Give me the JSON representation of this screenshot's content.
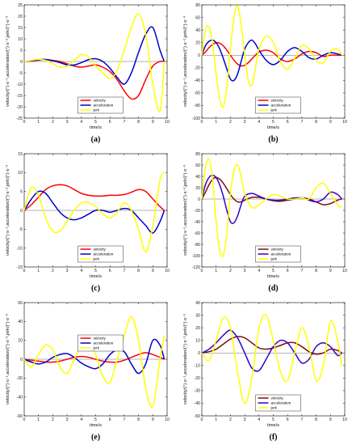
{
  "chart_data": [
    {
      "type": "line",
      "panel_label": "(a)",
      "xlabel": "time/s",
      "ylabel": "velocity/(°)·s⁻¹,acceleration/(°)·s⁻²,jerk/(°)·s⁻³",
      "xlim": [
        0,
        10
      ],
      "ylim": [
        -25,
        25
      ],
      "xticks": [
        0,
        1,
        2,
        3,
        4,
        5,
        6,
        7,
        8,
        9,
        10
      ],
      "yticks": [
        -25,
        -20,
        -15,
        -10,
        -5,
        0,
        5,
        10,
        15,
        20,
        25
      ],
      "legend_placement": "lower-center",
      "x": [
        0,
        0.5,
        1,
        1.5,
        2,
        2.5,
        3,
        3.5,
        4,
        4.5,
        5,
        5.5,
        6,
        6.5,
        7,
        7.5,
        8,
        8.5,
        9,
        9.5,
        9.8
      ],
      "series": [
        {
          "name": "velocity",
          "color": "#ff0000",
          "values": [
            0,
            0.2,
            0.6,
            0.8,
            0.5,
            0,
            -1,
            -2,
            -2.5,
            -2,
            -1.5,
            -2.5,
            -4.5,
            -8,
            -13,
            -16.5,
            -15,
            -8,
            -2,
            0,
            0
          ]
        },
        {
          "name": "acceleration",
          "color": "#0000cc",
          "values": [
            0,
            0.3,
            0.8,
            0.9,
            0.3,
            -0.5,
            -1.5,
            -1.5,
            -0.5,
            0.8,
            1.2,
            0,
            -3,
            -7,
            -10,
            -5,
            4,
            12,
            15,
            5,
            0
          ]
        },
        {
          "name": "jerk",
          "color": "#ffff00",
          "values": [
            0,
            0.5,
            1,
            0.5,
            -1,
            -2.5,
            -2,
            0.5,
            3,
            2,
            -2,
            -5,
            -7.5,
            -4,
            5,
            15,
            21,
            12,
            -10,
            -22,
            0
          ]
        }
      ]
    },
    {
      "type": "line",
      "panel_label": "(b)",
      "xlabel": "time/s",
      "ylabel": "velocity/(°)·s⁻¹,acceleration/(°)·s⁻²,jerk/(°)·s⁻³",
      "xlim": [
        0,
        10
      ],
      "ylim": [
        -100,
        80
      ],
      "xticks": [
        0,
        1,
        2,
        3,
        4,
        5,
        6,
        7,
        8,
        9,
        10
      ],
      "yticks": [
        -100,
        -80,
        -60,
        -40,
        -20,
        0,
        20,
        40,
        60,
        80
      ],
      "legend_placement": "lower-center",
      "x": [
        0,
        0.25,
        0.5,
        0.75,
        1,
        1.25,
        1.5,
        1.75,
        2,
        2.25,
        2.5,
        2.75,
        3,
        3.25,
        3.5,
        3.75,
        4,
        4.5,
        5,
        5.5,
        6,
        6.5,
        7,
        7.5,
        8,
        8.5,
        9,
        9.5,
        9.8
      ],
      "series": [
        {
          "name": "velocity",
          "color": "#ff0000",
          "values": [
            0,
            5,
            12,
            17,
            20,
            19,
            15,
            8,
            0,
            -8,
            -14,
            -17,
            -16,
            -12,
            -6,
            0,
            5,
            8,
            4,
            -6,
            -10,
            -6,
            2,
            6,
            4,
            -2,
            0,
            0,
            0
          ]
        },
        {
          "name": "acceleration",
          "color": "#0000cc",
          "values": [
            0,
            15,
            22,
            24,
            20,
            10,
            -5,
            -22,
            -38,
            -40,
            -30,
            -10,
            10,
            20,
            24,
            18,
            8,
            -8,
            -15,
            -8,
            6,
            12,
            6,
            -4,
            -6,
            0,
            4,
            2,
            0
          ]
        },
        {
          "name": "jerk",
          "color": "#ffff00",
          "values": [
            0,
            40,
            45,
            20,
            -30,
            -70,
            -82,
            -50,
            10,
            60,
            78,
            50,
            0,
            -40,
            -48,
            -20,
            10,
            30,
            20,
            -10,
            -22,
            -5,
            15,
            10,
            -8,
            -12,
            6,
            10,
            0
          ]
        }
      ]
    },
    {
      "type": "line",
      "panel_label": "(c)",
      "xlabel": "time/s",
      "ylabel": "velocity/(°)·s⁻¹,acceleration/(°)·s⁻²,jerk/(°)·s⁻³",
      "xlim": [
        0,
        10
      ],
      "ylim": [
        -15,
        15
      ],
      "xticks": [
        0,
        1,
        2,
        3,
        4,
        5,
        6,
        7,
        8,
        9,
        10
      ],
      "yticks": [
        -15,
        -10,
        -5,
        0,
        5,
        10,
        15
      ],
      "legend_placement": "lower-center",
      "x": [
        0,
        0.5,
        1,
        1.5,
        2,
        2.5,
        3,
        3.5,
        4,
        4.5,
        5,
        5.5,
        6,
        6.5,
        7,
        7.5,
        8,
        8.5,
        9,
        9.5,
        9.8
      ],
      "series": [
        {
          "name": "velocity",
          "color": "#ff0000",
          "values": [
            0,
            1.5,
            3.5,
            5.5,
            6.5,
            6.8,
            6.5,
            5.5,
            4.5,
            4,
            3.8,
            3.8,
            4,
            4,
            4.2,
            4.8,
            5.5,
            5,
            3,
            1,
            0
          ]
        },
        {
          "name": "acceleration",
          "color": "#0000cc",
          "values": [
            0,
            3,
            5,
            4.5,
            2,
            -0.5,
            -2,
            -2.5,
            -2,
            -1,
            0,
            0,
            -0.5,
            0,
            0.5,
            0,
            -2,
            -4,
            -6,
            -3,
            0
          ]
        },
        {
          "name": "jerk",
          "color": "#ffff00",
          "values": [
            0,
            6,
            4,
            -2,
            -5.5,
            -5.5,
            -3,
            0,
            2,
            2,
            1,
            -1,
            -2,
            -0.5,
            2,
            0,
            -5,
            -11,
            -4,
            8,
            10
          ]
        }
      ]
    },
    {
      "type": "line",
      "panel_label": "(d)",
      "xlabel": "time/s",
      "ylabel": "velocity/(°)·s⁻¹,acceleration/(°)·s⁻²,jerk/(°)·s⁻³",
      "xlim": [
        0,
        10
      ],
      "ylim": [
        -120,
        80
      ],
      "xticks": [
        0,
        1,
        2,
        3,
        4,
        5,
        6,
        7,
        8,
        9,
        10
      ],
      "yticks": [
        -120,
        -100,
        -80,
        -60,
        -40,
        -20,
        0,
        20,
        40,
        60,
        80
      ],
      "legend_placement": "lower-center",
      "x": [
        0,
        0.25,
        0.5,
        0.75,
        1,
        1.25,
        1.5,
        1.75,
        2,
        2.25,
        2.5,
        2.75,
        3,
        3.5,
        4,
        4.5,
        5,
        5.5,
        6,
        6.5,
        7,
        7.5,
        8,
        8.5,
        9,
        9.5,
        9.8
      ],
      "series": [
        {
          "name": "velocity",
          "color": "#7b1010",
          "values": [
            0,
            12,
            25,
            35,
            38,
            35,
            28,
            18,
            8,
            0,
            -5,
            -5,
            -2,
            3,
            3,
            0,
            -3,
            -4,
            -2,
            0,
            2,
            0,
            -5,
            -10,
            -8,
            -2,
            0
          ]
        },
        {
          "name": "acceleration",
          "color": "#3300cc",
          "values": [
            0,
            25,
            38,
            42,
            38,
            25,
            5,
            -20,
            -40,
            -42,
            -30,
            -10,
            5,
            10,
            5,
            0,
            -2,
            -2,
            0,
            2,
            2,
            -2,
            -5,
            0,
            12,
            8,
            0
          ]
        },
        {
          "name": "jerk",
          "color": "#ffff00",
          "values": [
            0,
            55,
            70,
            35,
            -40,
            -90,
            -100,
            -60,
            10,
            50,
            60,
            40,
            10,
            -15,
            -10,
            0,
            8,
            5,
            0,
            0,
            2,
            0,
            20,
            28,
            10,
            -10,
            -15
          ]
        }
      ]
    },
    {
      "type": "line",
      "panel_label": "(e)",
      "xlabel": "time/s",
      "ylabel": "velocity/(°)·s⁻¹,acceleration/(°)·s⁻²,jerk/(°)·s⁻³",
      "xlim": [
        0,
        10
      ],
      "ylim": [
        -60,
        60
      ],
      "xticks": [
        0,
        1,
        2,
        3,
        4,
        5,
        6,
        7,
        8,
        9,
        10
      ],
      "yticks": [
        -60,
        -40,
        -20,
        0,
        20,
        40,
        60
      ],
      "legend_placement": "upper-center",
      "x": [
        0,
        0.5,
        1,
        1.5,
        2,
        2.5,
        3,
        3.5,
        4,
        4.5,
        5,
        5.5,
        6,
        6.5,
        7,
        7.5,
        8,
        8.5,
        9,
        9.5,
        9.8
      ],
      "series": [
        {
          "name": "velocity",
          "color": "#ff0000",
          "values": [
            0,
            -1,
            -2,
            -3,
            -3,
            -2,
            0,
            2,
            3,
            2,
            0,
            -2,
            -3,
            -3,
            -1,
            2,
            5,
            7,
            5,
            2,
            0
          ]
        },
        {
          "name": "acceleration",
          "color": "#0000cc",
          "values": [
            0,
            -3,
            -5,
            -3,
            2,
            5,
            6,
            2,
            -4,
            -8,
            -10,
            -5,
            5,
            10,
            8,
            -5,
            -15,
            -5,
            20,
            15,
            0
          ]
        },
        {
          "name": "jerk",
          "color": "#ffff00",
          "values": [
            0,
            -8,
            5,
            15,
            10,
            -8,
            -15,
            0,
            15,
            18,
            5,
            -18,
            -25,
            0,
            25,
            45,
            20,
            -30,
            -50,
            0,
            25
          ]
        }
      ]
    },
    {
      "type": "line",
      "panel_label": "(f)",
      "xlabel": "time/s",
      "ylabel": "velocity/(°)·s⁻¹,acceleration/(°)·s⁻²,jerk/(°)·s⁻³",
      "xlim": [
        0,
        10
      ],
      "ylim": [
        -50,
        40
      ],
      "xticks": [
        0,
        1,
        2,
        3,
        4,
        5,
        6,
        7,
        8,
        9,
        10
      ],
      "yticks": [
        -50,
        -40,
        -30,
        -20,
        -10,
        0,
        10,
        20,
        30,
        40
      ],
      "legend_placement": "lower-center",
      "x": [
        0,
        0.5,
        1,
        1.5,
        2,
        2.5,
        3,
        3.5,
        4,
        4.5,
        5,
        5.5,
        6,
        6.5,
        7,
        7.5,
        8,
        8.5,
        9,
        9.5,
        9.8
      ],
      "series": [
        {
          "name": "velocity",
          "color": "#7b1010",
          "values": [
            0,
            1,
            3,
            7,
            11,
            13,
            12,
            8,
            4,
            3,
            4,
            6,
            8,
            8,
            5,
            1,
            -1,
            0,
            3,
            2,
            0
          ]
        },
        {
          "name": "acceleration",
          "color": "#3300cc",
          "values": [
            0,
            3,
            8,
            14,
            18,
            12,
            0,
            -12,
            -14,
            -5,
            5,
            10,
            8,
            0,
            -8,
            -5,
            5,
            8,
            5,
            -2,
            0
          ]
        },
        {
          "name": "jerk",
          "color": "#ffff00",
          "values": [
            0,
            -6,
            10,
            28,
            20,
            -15,
            -40,
            -20,
            20,
            30,
            10,
            -15,
            -22,
            0,
            20,
            5,
            -22,
            -10,
            25,
            10,
            -10
          ]
        }
      ]
    }
  ]
}
